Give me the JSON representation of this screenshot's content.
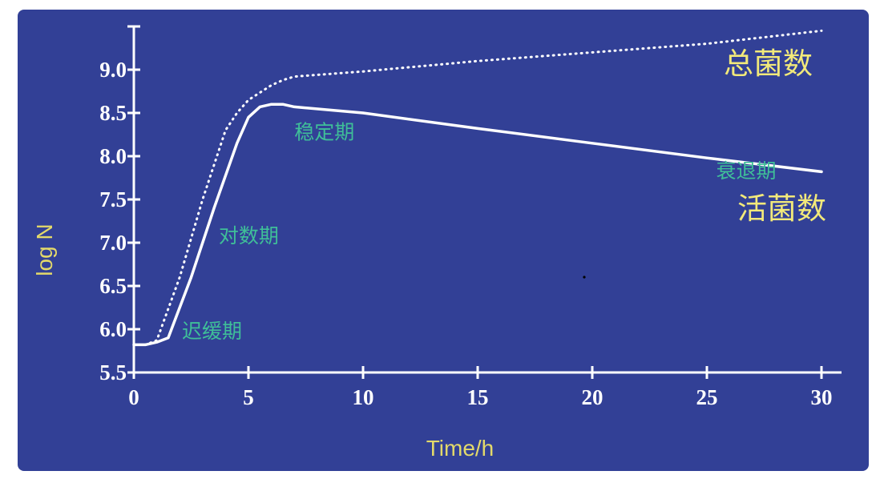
{
  "chart_data": {
    "type": "line",
    "xlabel": "Time/h",
    "ylabel": "log N",
    "xlim": [
      0,
      30
    ],
    "ylim": [
      5.5,
      9.5
    ],
    "x_ticks": [
      "0",
      "5",
      "10",
      "15",
      "20",
      "25",
      "30"
    ],
    "y_ticks": [
      "5.5",
      "6.0",
      "6.5",
      "7.0",
      "7.5",
      "8.0",
      "8.5",
      "9.0"
    ],
    "grid": false,
    "series": [
      {
        "name": "总菌数",
        "style": "dotted",
        "color": "#ffffff",
        "points": [
          [
            0,
            5.82
          ],
          [
            0.5,
            5.82
          ],
          [
            1,
            5.87
          ],
          [
            2,
            6.6
          ],
          [
            3,
            7.5
          ],
          [
            4,
            8.3
          ],
          [
            4.5,
            8.5
          ],
          [
            5,
            8.65
          ],
          [
            6,
            8.82
          ],
          [
            6.5,
            8.88
          ],
          [
            7,
            8.92
          ],
          [
            10,
            8.98
          ],
          [
            15,
            9.1
          ],
          [
            20,
            9.2
          ],
          [
            25,
            9.3
          ],
          [
            30,
            9.45
          ]
        ]
      },
      {
        "name": "活菌数",
        "style": "solid",
        "color": "#ffffff",
        "points": [
          [
            0,
            5.82
          ],
          [
            0.5,
            5.82
          ],
          [
            1,
            5.85
          ],
          [
            1.5,
            5.9
          ],
          [
            2.5,
            6.6
          ],
          [
            3.5,
            7.4
          ],
          [
            4.5,
            8.15
          ],
          [
            5,
            8.45
          ],
          [
            5.5,
            8.57
          ],
          [
            6,
            8.6
          ],
          [
            6.5,
            8.6
          ],
          [
            7,
            8.57
          ],
          [
            10,
            8.5
          ],
          [
            15,
            8.32
          ],
          [
            20,
            8.15
          ],
          [
            25,
            7.98
          ],
          [
            30,
            7.82
          ]
        ]
      }
    ],
    "annotations": [
      {
        "text": "迟缓期",
        "x": 2.1,
        "y": 5.9
      },
      {
        "text": "对数期",
        "x": 3.7,
        "y": 7.0
      },
      {
        "text": "稳定期",
        "x": 7.0,
        "y": 8.2
      },
      {
        "text": "衰退期",
        "x": 25.4,
        "y": 7.75
      }
    ]
  },
  "colors": {
    "background": "#324096",
    "axis": "#ffffff",
    "axis_title": "#e3d96a",
    "phase_label": "#3fbf98",
    "series_label": "#f2e97a"
  }
}
